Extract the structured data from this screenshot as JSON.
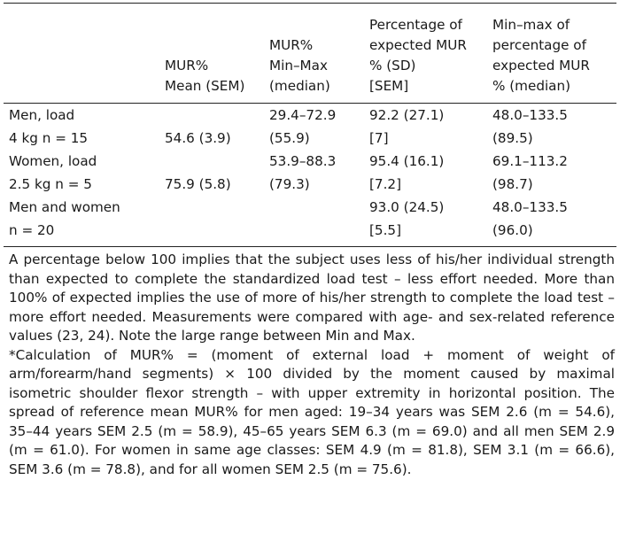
{
  "table": {
    "headers": [
      "",
      "MUR%\nMean (SEM)",
      "MUR%\nMin–Max\n(median)",
      "Percentage of\nexpected MUR\n% (SD)\n[SEM]",
      "Min–max of\npercentage of\nexpected MUR\n% (median)"
    ],
    "rows": [
      [
        "Men, load",
        "",
        "29.4–72.9",
        "92.2 (27.1)",
        "48.0–133.5"
      ],
      [
        "4 kg n = 15",
        "54.6 (3.9)",
        "(55.9)",
        "[7]",
        "(89.5)"
      ],
      [
        "Women, load",
        "",
        "53.9–88.3",
        "95.4 (16.1)",
        "69.1–113.2"
      ],
      [
        "2.5 kg n = 5",
        "75.9 (5.8)",
        "(79.3)",
        "[7.2]",
        "(98.7)"
      ],
      [
        "Men and women",
        "",
        "",
        "93.0 (24.5)",
        "48.0–133.5"
      ],
      [
        "n = 20",
        "",
        "",
        "[5.5]",
        "(96.0)"
      ]
    ]
  },
  "notes": [
    "A percentage below 100 implies that the subject uses less of his/her individual strength than expected to complete the standardized load test – less effort needed. More than 100% of expected implies the use of more of his/her strength to complete the load test – more effort needed. Measurements were compared with age- and sex-related reference values (23, 24). Note the large range between Min and Max.",
    "*Calculation of MUR% = (moment of external load + moment of weight of arm/forearm/hand segments) × 100 divided by the moment caused by maximal isometric shoulder flexor strength – with upper extremity in horizontal position. The spread of reference mean MUR% for men aged: 19–34 years was SEM 2.6 (m = 54.6), 35–44 years SEM 2.5 (m = 58.9), 45–65 years SEM 6.3 (m = 69.0) and all men SEM 2.9 (m = 61.0). For women in same age classes: SEM 4.9 (m = 81.8), SEM 3.1 (m = 66.6), SEM 3.6 (m = 78.8), and for all women SEM 2.5 (m = 75.6)."
  ]
}
